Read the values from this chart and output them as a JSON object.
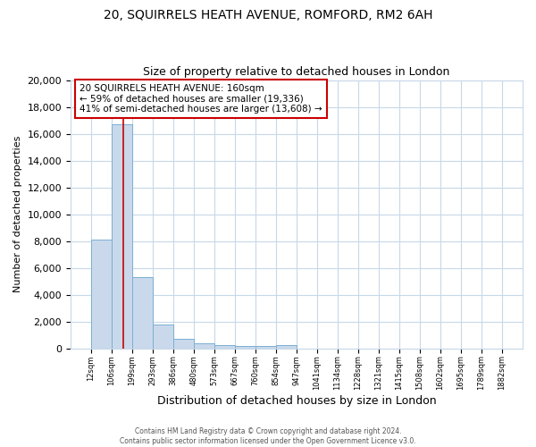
{
  "title": "20, SQUIRRELS HEATH AVENUE, ROMFORD, RM2 6AH",
  "subtitle": "Size of property relative to detached houses in London",
  "xlabel": "Distribution of detached houses by size in London",
  "ylabel": "Number of detached properties",
  "bar_values": [
    8100,
    16700,
    5300,
    1750,
    700,
    370,
    220,
    175,
    150,
    230,
    0,
    0,
    0,
    0,
    0,
    0,
    0,
    0,
    0,
    0
  ],
  "categories": [
    "12sqm",
    "106sqm",
    "199sqm",
    "293sqm",
    "386sqm",
    "480sqm",
    "573sqm",
    "667sqm",
    "760sqm",
    "854sqm",
    "947sqm",
    "1041sqm",
    "1134sqm",
    "1228sqm",
    "1321sqm",
    "1415sqm",
    "1508sqm",
    "1602sqm",
    "1695sqm",
    "1789sqm",
    "1882sqm"
  ],
  "bar_color": "#c9d9eb",
  "bar_edge_color": "#7bafd4",
  "property_line_color": "#cc0000",
  "annotation_line1": "20 SQUIRRELS HEATH AVENUE: 160sqm",
  "annotation_line2": "← 59% of detached houses are smaller (19,336)",
  "annotation_line3": "41% of semi-detached houses are larger (13,608) →",
  "annotation_box_color": "#cc0000",
  "ylim": [
    0,
    20000
  ],
  "yticks": [
    0,
    2000,
    4000,
    6000,
    8000,
    10000,
    12000,
    14000,
    16000,
    18000,
    20000
  ],
  "footer1": "Contains HM Land Registry data © Crown copyright and database right 2024.",
  "footer2": "Contains public sector information licensed under the Open Government Licence v3.0.",
  "background_color": "#ffffff",
  "grid_color": "#c8d8e8",
  "title_fontsize": 10,
  "subtitle_fontsize": 9,
  "ylabel_fontsize": 8,
  "xlabel_fontsize": 9,
  "ytick_fontsize": 8,
  "xtick_fontsize": 6,
  "annotation_fontsize": 7.5,
  "footer_fontsize": 5.5
}
